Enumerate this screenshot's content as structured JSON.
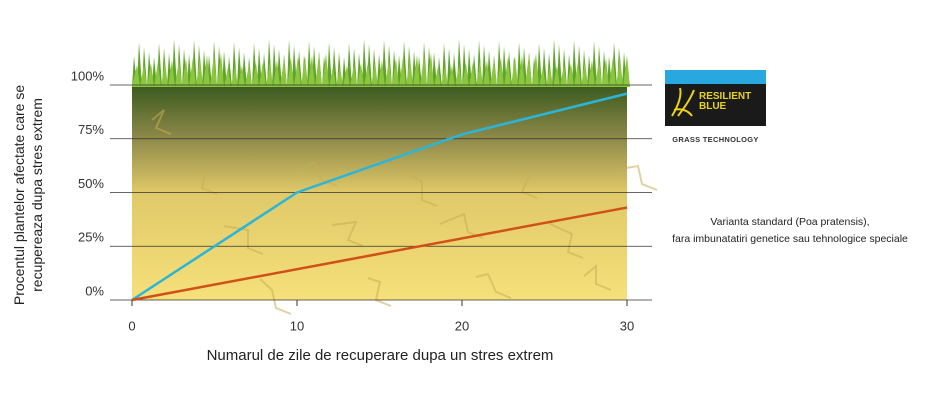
{
  "chart_data": {
    "type": "line",
    "ylabel": [
      "Procentul plantelor afectate care se",
      "recupereaza dupa stres extrem"
    ],
    "xlabel": "Numarul de zile de recuperare dupa un stres extrem",
    "legend_tagline": "GRASS TECHNOLOGY",
    "xlim": [
      0,
      30
    ],
    "xticks": [
      0,
      10,
      20,
      30
    ],
    "ylim": [
      0,
      100
    ],
    "yticks": [
      {
        "value": 0,
        "label": "0%"
      },
      {
        "value": 25,
        "label": "25%"
      },
      {
        "value": 50,
        "label": "50%"
      },
      {
        "value": 75,
        "label": "75%"
      },
      {
        "value": 100,
        "label": "100%"
      }
    ],
    "grid": true,
    "series": [
      {
        "name": "RESILIENT BLUE",
        "color": "#2bb5d8",
        "x": [
          0,
          10,
          20,
          30
        ],
        "values": [
          0,
          50,
          77,
          96
        ]
      },
      {
        "name": "Varianta standard (Poa pratensis),\nfara imbunatatiri genetice sau tehnologice speciale",
        "color": "#d0501a",
        "x": [
          0,
          30
        ],
        "values": [
          0,
          43
        ]
      }
    ]
  }
}
